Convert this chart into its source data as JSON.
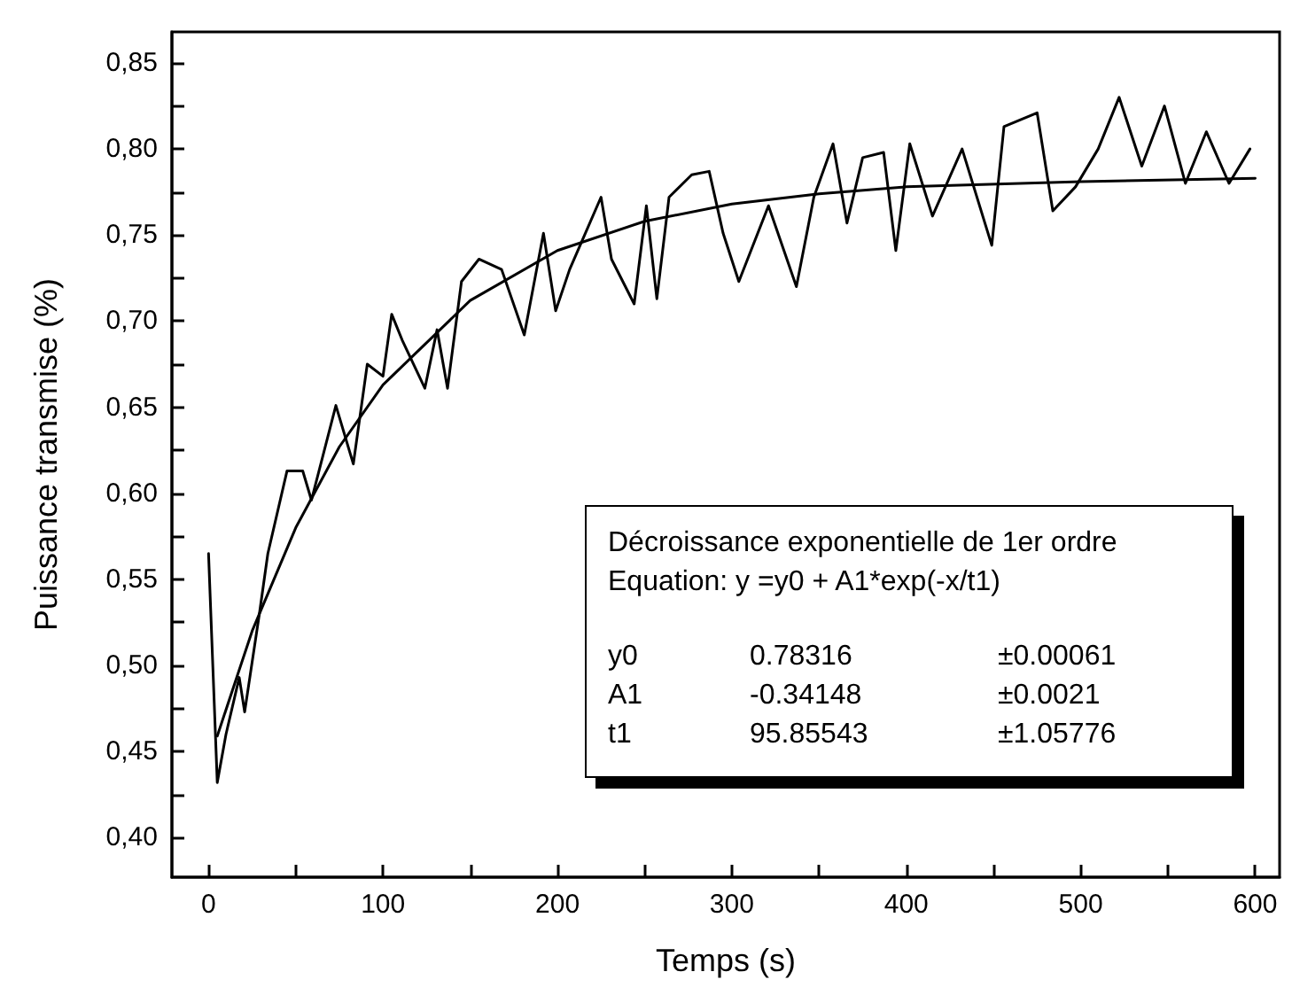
{
  "chart_data": {
    "type": "line",
    "xlabel": "Temps (s)",
    "ylabel": "Puissance transmise (%)",
    "xlim": [
      -21,
      614
    ],
    "ylim": [
      0.377,
      0.868
    ],
    "xticks": [
      0,
      {
        "value": 50,
        "label": null
      },
      100,
      {
        "value": 150,
        "label": null
      },
      200,
      {
        "value": 250,
        "label": null
      },
      300,
      {
        "value": 350,
        "label": null
      },
      400,
      {
        "value": 450,
        "label": null
      },
      500,
      {
        "value": 550,
        "label": null
      },
      600
    ],
    "yticks": [
      {
        "value": 0.4,
        "label": "0,40"
      },
      {
        "value": 0.425,
        "label": null
      },
      {
        "value": 0.45,
        "label": "0,45"
      },
      {
        "value": 0.475,
        "label": null
      },
      {
        "value": 0.5,
        "label": "0,50"
      },
      {
        "value": 0.525,
        "label": null
      },
      {
        "value": 0.55,
        "label": "0,55"
      },
      {
        "value": 0.575,
        "label": null
      },
      {
        "value": 0.6,
        "label": "0,60"
      },
      {
        "value": 0.625,
        "label": null
      },
      {
        "value": 0.65,
        "label": "0,65"
      },
      {
        "value": 0.675,
        "label": null
      },
      {
        "value": 0.7,
        "label": "0,70"
      },
      {
        "value": 0.725,
        "label": null
      },
      {
        "value": 0.75,
        "label": "0,75"
      },
      {
        "value": 0.775,
        "label": null
      },
      {
        "value": 0.8,
        "label": "0,80"
      },
      {
        "value": 0.825,
        "label": null
      },
      {
        "value": 0.85,
        "label": "0,85"
      }
    ],
    "grid": false,
    "marker": "none",
    "line_style": "solid",
    "series": [
      {
        "color": "#000000",
        "x": [
          0,
          5,
          10,
          17.6,
          20.7,
          29,
          34,
          45,
          54,
          59,
          73,
          83,
          91,
          100,
          105,
          111,
          124,
          131,
          137,
          145,
          155,
          168,
          181,
          192,
          199,
          207,
          225,
          231,
          244,
          251,
          257,
          264,
          277,
          287,
          295,
          304,
          321,
          337,
          347,
          358,
          366,
          375,
          387,
          394,
          402,
          415,
          432,
          449,
          456,
          475,
          484,
          497,
          510,
          522,
          535,
          548,
          560,
          572,
          585,
          597
        ],
        "values": [
          0.565,
          0.432,
          0.46,
          0.493,
          0.473,
          0.529,
          0.565,
          0.613,
          0.613,
          0.596,
          0.651,
          0.617,
          0.675,
          0.668,
          0.704,
          0.689,
          0.661,
          0.695,
          0.661,
          0.723,
          0.736,
          0.73,
          0.692,
          0.751,
          0.706,
          0.73,
          0.772,
          0.736,
          0.71,
          0.767,
          0.713,
          0.772,
          0.785,
          0.787,
          0.751,
          0.723,
          0.767,
          0.72,
          0.772,
          0.803,
          0.757,
          0.795,
          0.798,
          0.741,
          0.803,
          0.761,
          0.8,
          0.744,
          0.813,
          0.821,
          0.764,
          0.778,
          0.8,
          0.83,
          0.79,
          0.825,
          0.78,
          0.81,
          0.78,
          0.8
        ]
      },
      {
        "color": "#000000",
        "x": [
          5,
          25,
          50,
          75,
          100,
          150,
          200,
          250,
          300,
          350,
          400,
          500,
          600
        ],
        "values": [
          0.459,
          0.52,
          0.58,
          0.627,
          0.663,
          0.712,
          0.741,
          0.758,
          0.768,
          0.774,
          0.778,
          0.781,
          0.783
        ]
      }
    ],
    "annotations": [
      "Décroissance exponentielle de 1er ordre",
      "Equation: y =y0 + A1*exp(-x/t1)",
      "y0",
      "0.78316",
      "±0.00061",
      "A1",
      "-0.34148",
      "±0.0021",
      "t1",
      "95.85543",
      "±1.05776"
    ]
  }
}
